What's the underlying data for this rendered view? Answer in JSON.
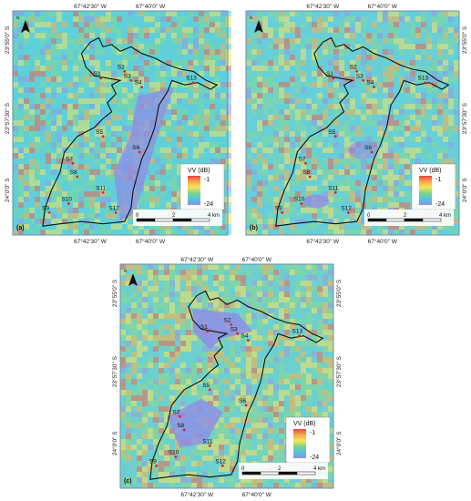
{
  "figure": {
    "panels": [
      {
        "label": "(a)",
        "top_lon": [
          "67°42'30\" W",
          "67°40'0\" W"
        ],
        "bottom_lon": [
          "67°42'30\" W",
          "67°40'0\" W"
        ],
        "left_lat": [
          "23°55'0\" S",
          "23°57'30\" S",
          "24°0'0\" S"
        ],
        "right_lat": [],
        "has_scalebar": true,
        "palette_variant": "a",
        "wet_areas": [],
        "scene_top": "#5fd0d8"
      },
      {
        "label": "(b)",
        "top_lon": [
          "67°42'30\" W",
          "67°40'0\" W"
        ],
        "bottom_lon": [
          "67°42'30\" W",
          "67°40'0\" W"
        ],
        "left_lat": [],
        "right_lat": [
          "23°55'0\" S",
          "23°57'30\" S",
          "24°0'0\" S"
        ],
        "has_scalebar": true,
        "palette_variant": "b",
        "wet_areas": [],
        "scene_top": "#6fcfd4"
      },
      {
        "label": "(c)",
        "top_lon": [
          "67°42'30\" W",
          "67°40'0\" W"
        ],
        "bottom_lon": [
          "67°42'30\" W",
          "67°40'0\" W"
        ],
        "left_lat": [
          "23°55'0\" S",
          "23°57'30\" S",
          "24°0'0\" S"
        ],
        "right_lat": [
          "23°55'0\" S",
          "23°57'30\" S",
          "24°0'0\" S"
        ],
        "has_scalebar": true,
        "palette_variant": "c",
        "wet_areas": [
          "north",
          "southwest"
        ],
        "scene_top": "#7fd0c0"
      }
    ],
    "sites": [
      "S1",
      "S2",
      "S3",
      "S4",
      "S13",
      "S5",
      "S6",
      "S7",
      "S8",
      "S9",
      "S10",
      "S11",
      "S12"
    ],
    "legend": {
      "title": "VV (dB)",
      "max_label": "-1",
      "min_label": "-24",
      "colors": [
        "#e8454a",
        "#f7a94a",
        "#f4e65a",
        "#7cd38c",
        "#4fc7e0",
        "#8b8fe8"
      ]
    },
    "scalebar": {
      "labels": [
        "0",
        "2",
        "4 km"
      ]
    },
    "north_arrow": {
      "label": "N"
    },
    "colors": {
      "boundary": "#111111",
      "site_marker": "#e0202a",
      "frame": "#6a8fb0"
    }
  }
}
